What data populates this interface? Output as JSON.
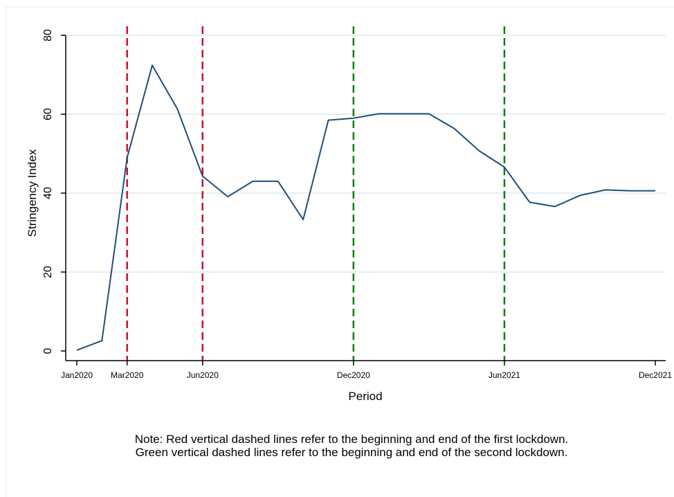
{
  "chart_data": {
    "type": "line",
    "xlabel": "Period",
    "ylabel": "Stringency Index",
    "ylim": [
      0,
      80
    ],
    "y_ticks": [
      0,
      20,
      40,
      60,
      80
    ],
    "x_ticks": [
      {
        "label": "Jan2020",
        "x": "2020-01"
      },
      {
        "label": "Mar2020",
        "x": "2020-03"
      },
      {
        "label": "Jun2020",
        "x": "2020-06"
      },
      {
        "label": "Dec2020",
        "x": "2020-12"
      },
      {
        "label": "Jun2021",
        "x": "2021-06"
      },
      {
        "label": "Dec2021",
        "x": "2021-12"
      }
    ],
    "xlim": [
      "2020-01",
      "2021-12"
    ],
    "grid": true,
    "series": [
      {
        "color": "#1f4e79",
        "points": [
          {
            "x": "2020-01",
            "y": 0.2
          },
          {
            "x": "2020-02",
            "y": 2.6
          },
          {
            "x": "2020-03",
            "y": 49.0
          },
          {
            "x": "2020-04",
            "y": 72.4
          },
          {
            "x": "2020-05",
            "y": 61.3
          },
          {
            "x": "2020-06",
            "y": 44.3
          },
          {
            "x": "2020-07",
            "y": 39.1
          },
          {
            "x": "2020-08",
            "y": 43.0
          },
          {
            "x": "2020-09",
            "y": 43.0
          },
          {
            "x": "2020-10",
            "y": 33.3
          },
          {
            "x": "2020-11",
            "y": 58.5
          },
          {
            "x": "2020-12",
            "y": 59.0
          },
          {
            "x": "2021-01",
            "y": 60.1
          },
          {
            "x": "2021-02",
            "y": 60.1
          },
          {
            "x": "2021-03",
            "y": 60.1
          },
          {
            "x": "2021-04",
            "y": 56.4
          },
          {
            "x": "2021-05",
            "y": 50.7
          },
          {
            "x": "2021-06",
            "y": 46.6
          },
          {
            "x": "2021-07",
            "y": 37.7
          },
          {
            "x": "2021-08",
            "y": 36.6
          },
          {
            "x": "2021-09",
            "y": 39.4
          },
          {
            "x": "2021-10",
            "y": 40.8
          },
          {
            "x": "2021-11",
            "y": 40.6
          },
          {
            "x": "2021-12",
            "y": 40.6
          }
        ]
      }
    ],
    "vertical_lines": [
      {
        "x": "2020-03",
        "color": "#c8102e",
        "style": "dashed"
      },
      {
        "x": "2020-06",
        "color": "#c8102e",
        "style": "dashed"
      },
      {
        "x": "2020-12",
        "color": "#0a7f0a",
        "style": "dashed"
      },
      {
        "x": "2021-06",
        "color": "#0a7f0a",
        "style": "dashed"
      }
    ],
    "note": [
      "Note: Red vertical dashed lines refer to the beginning and end of the first lockdown.",
      "Green vertical dashed lines refer to the beginning and end of the second lockdown."
    ]
  },
  "colors": {
    "line": "#1f4e79",
    "grid": "#e3eef1",
    "axis": "#000000",
    "first_lockdown": "#c8102e",
    "second_lockdown": "#0a7f0a"
  }
}
